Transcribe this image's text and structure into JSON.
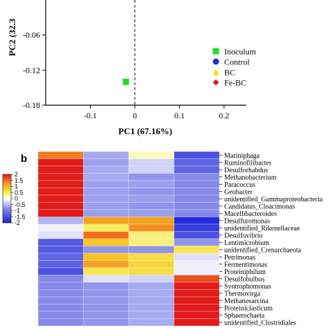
{
  "chart_data": [
    {
      "type": "scatter",
      "xlabel": "PC1 (67.16%)",
      "ylabel": "PC2 (32.3",
      "xlim": [
        -0.2,
        0.25
      ],
      "ylim": [
        -0.18,
        0.0
      ],
      "x_ticks": [
        -0.1,
        0.0,
        0.1,
        0.2
      ],
      "x_tick_labels": [
        "-0.1",
        "0",
        "0.1",
        "0.2"
      ],
      "y_ticks": [
        -0.06,
        -0.12,
        -0.18
      ],
      "y_tick_labels": [
        "-0.06",
        "-0.12",
        "-0.18"
      ],
      "zero_line": "dashed vertical at x = 0",
      "legend_position": "right",
      "series": [
        {
          "name": "Inoculum",
          "color": "#22dd22",
          "marker": "square",
          "points": [
            [
              -0.02,
              -0.14
            ]
          ]
        },
        {
          "name": "Control",
          "color": "#1f2fcc",
          "marker": "circle",
          "points": []
        },
        {
          "name": "BC",
          "color": "#f5d800",
          "marker": "triangle",
          "points": []
        },
        {
          "name": "Fe-BC",
          "color": "#e01b24",
          "marker": "diamond",
          "points": []
        }
      ]
    },
    {
      "type": "heatmap",
      "panel_label": "b",
      "colorbar": {
        "ticks": [
          "2",
          "1.5",
          "1",
          "0.5",
          "0",
          "-0.5",
          "-1",
          "-1.5",
          "-2"
        ],
        "range": [
          -2,
          2
        ]
      },
      "rows": [
        "Mariniphaga",
        "Ruminofilibacter",
        "Desulforhabdus",
        "Methanobacterium",
        "Paracoccus",
        "Geobacter",
        "unidentified_Gammaproteobacteria",
        "Candidatus_Cloacimonas",
        "Macellibacteroides",
        "Desulfuromonas",
        "unidentified_Rikenellaceae",
        "Desulfovibrio",
        "Lentimicrobium",
        "unidentified_Crenarchaeota",
        "Petrimonas",
        "Fermentimonas",
        "Proteiniphilum",
        "Desulfobulbus",
        "Syntrophomonas",
        "Thermovirga",
        "Methanosarcina",
        "Proteiniclasticum",
        "Sphaerochaeta",
        "unidentified_Clostridiales"
      ],
      "values": [
        [
          1.4,
          -0.6,
          0.2,
          -1.5
        ],
        [
          2.0,
          -0.7,
          -0.3,
          -1.3
        ],
        [
          2.0,
          -0.6,
          -0.3,
          -1.3
        ],
        [
          2.0,
          -0.6,
          -0.8,
          -0.9
        ],
        [
          2.0,
          -0.7,
          -0.7,
          -0.9
        ],
        [
          2.0,
          -0.7,
          -0.8,
          -0.9
        ],
        [
          2.0,
          -0.7,
          -0.7,
          -0.9
        ],
        [
          2.0,
          -0.7,
          -0.8,
          -0.9
        ],
        [
          2.0,
          -0.7,
          -0.7,
          -0.9
        ],
        [
          -0.5,
          1.2,
          1.2,
          -1.9
        ],
        [
          -0.1,
          0.5,
          1.3,
          -1.7
        ],
        [
          -0.2,
          1.5,
          0.4,
          -1.5
        ],
        [
          -1.4,
          1.0,
          0.4,
          -0.8
        ],
        [
          -1.4,
          -0.8,
          -0.8,
          0.6
        ],
        [
          -1.3,
          1.0,
          0.7,
          -0.2
        ],
        [
          -1.3,
          1.2,
          0.8,
          -0.1
        ],
        [
          -1.5,
          0.6,
          0.7,
          -0.1
        ],
        [
          -0.9,
          -0.2,
          -0.3,
          1.7
        ],
        [
          -0.9,
          -0.8,
          -0.6,
          2.0
        ],
        [
          -0.9,
          -0.8,
          -0.6,
          2.0
        ],
        [
          -0.9,
          -0.8,
          -0.6,
          2.0
        ],
        [
          -0.9,
          -0.8,
          -0.6,
          2.0
        ],
        [
          -0.9,
          -0.8,
          -0.6,
          2.0
        ],
        [
          -0.9,
          -0.8,
          -0.6,
          2.0
        ]
      ]
    }
  ]
}
